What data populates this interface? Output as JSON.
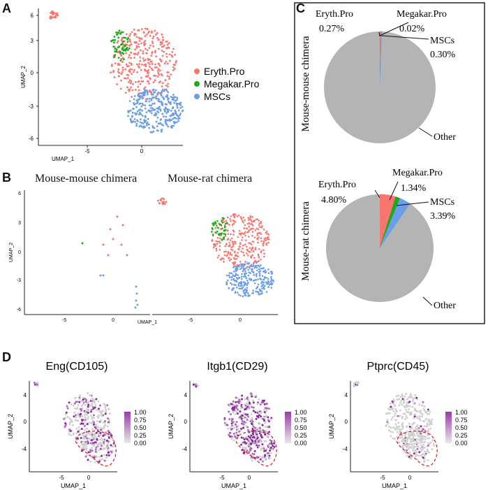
{
  "panel_labels": {
    "a": "A",
    "b": "B",
    "c": "C",
    "d": "D"
  },
  "colors": {
    "eryth": "#f8766d",
    "megakar": "#1aaa1a",
    "mscs": "#6b9de8",
    "other": "#b4b4b4",
    "purple": "#8a2a9a",
    "grey_pt": "#d0d0d0",
    "dashed": "#dd2222"
  },
  "panel_a": {
    "xlabel": "UMAP_1",
    "ylabel": "UMAP_2",
    "yticks": [
      "6",
      "3",
      "0",
      "-3",
      "-6"
    ],
    "xticks": [
      "-5",
      "0"
    ],
    "legend": [
      "Eryth.Pro",
      "Megakar.Pro",
      "MSCs"
    ]
  },
  "panel_b": {
    "titles": [
      "Mouse-mouse chimera",
      "Mouse-rat chimera"
    ],
    "xlabel": "UMAP_1",
    "ylabel": "UMAP_2",
    "yticks": [
      "6",
      "3",
      "0",
      "-3",
      "-6"
    ],
    "xticks_left": [
      "-5",
      "0"
    ],
    "xticks_right": [
      "-5",
      "0"
    ]
  },
  "chart_data": [
    {
      "type": "pie",
      "title": "Mouse-mouse chimera",
      "labels": [
        "Eryth.Pro",
        "Megakar.Pro",
        "MSCs",
        "Other"
      ],
      "values": [
        0.27,
        0.02,
        0.3,
        99.41
      ],
      "data_labels": [
        "0.27%",
        "0.02%",
        "0.30%",
        ""
      ]
    },
    {
      "type": "pie",
      "title": "Mouse-rat chimera",
      "labels": [
        "Eryth.Pro",
        "Megakar.Pro",
        "MSCs",
        "Other"
      ],
      "values": [
        4.8,
        1.34,
        3.39,
        90.47
      ],
      "data_labels": [
        "4.80%",
        "1.34%",
        "3.39%",
        ""
      ]
    }
  ],
  "panel_d": {
    "plots": [
      {
        "title": "Eng(CD105)",
        "frac": 0.35
      },
      {
        "title": "Itgb1(CD29)",
        "frac": 0.7
      },
      {
        "title": "Ptprc(CD45)",
        "frac": 0.08
      }
    ],
    "xlabel": "UMAP_1",
    "ylabel": "UMAP_2",
    "yticks": [
      "4",
      "0",
      "-4"
    ],
    "xticks": [
      "-5",
      "0"
    ],
    "scale_labels": [
      "1.00",
      "0.75",
      "0.50",
      "0.25",
      "0.00"
    ]
  }
}
